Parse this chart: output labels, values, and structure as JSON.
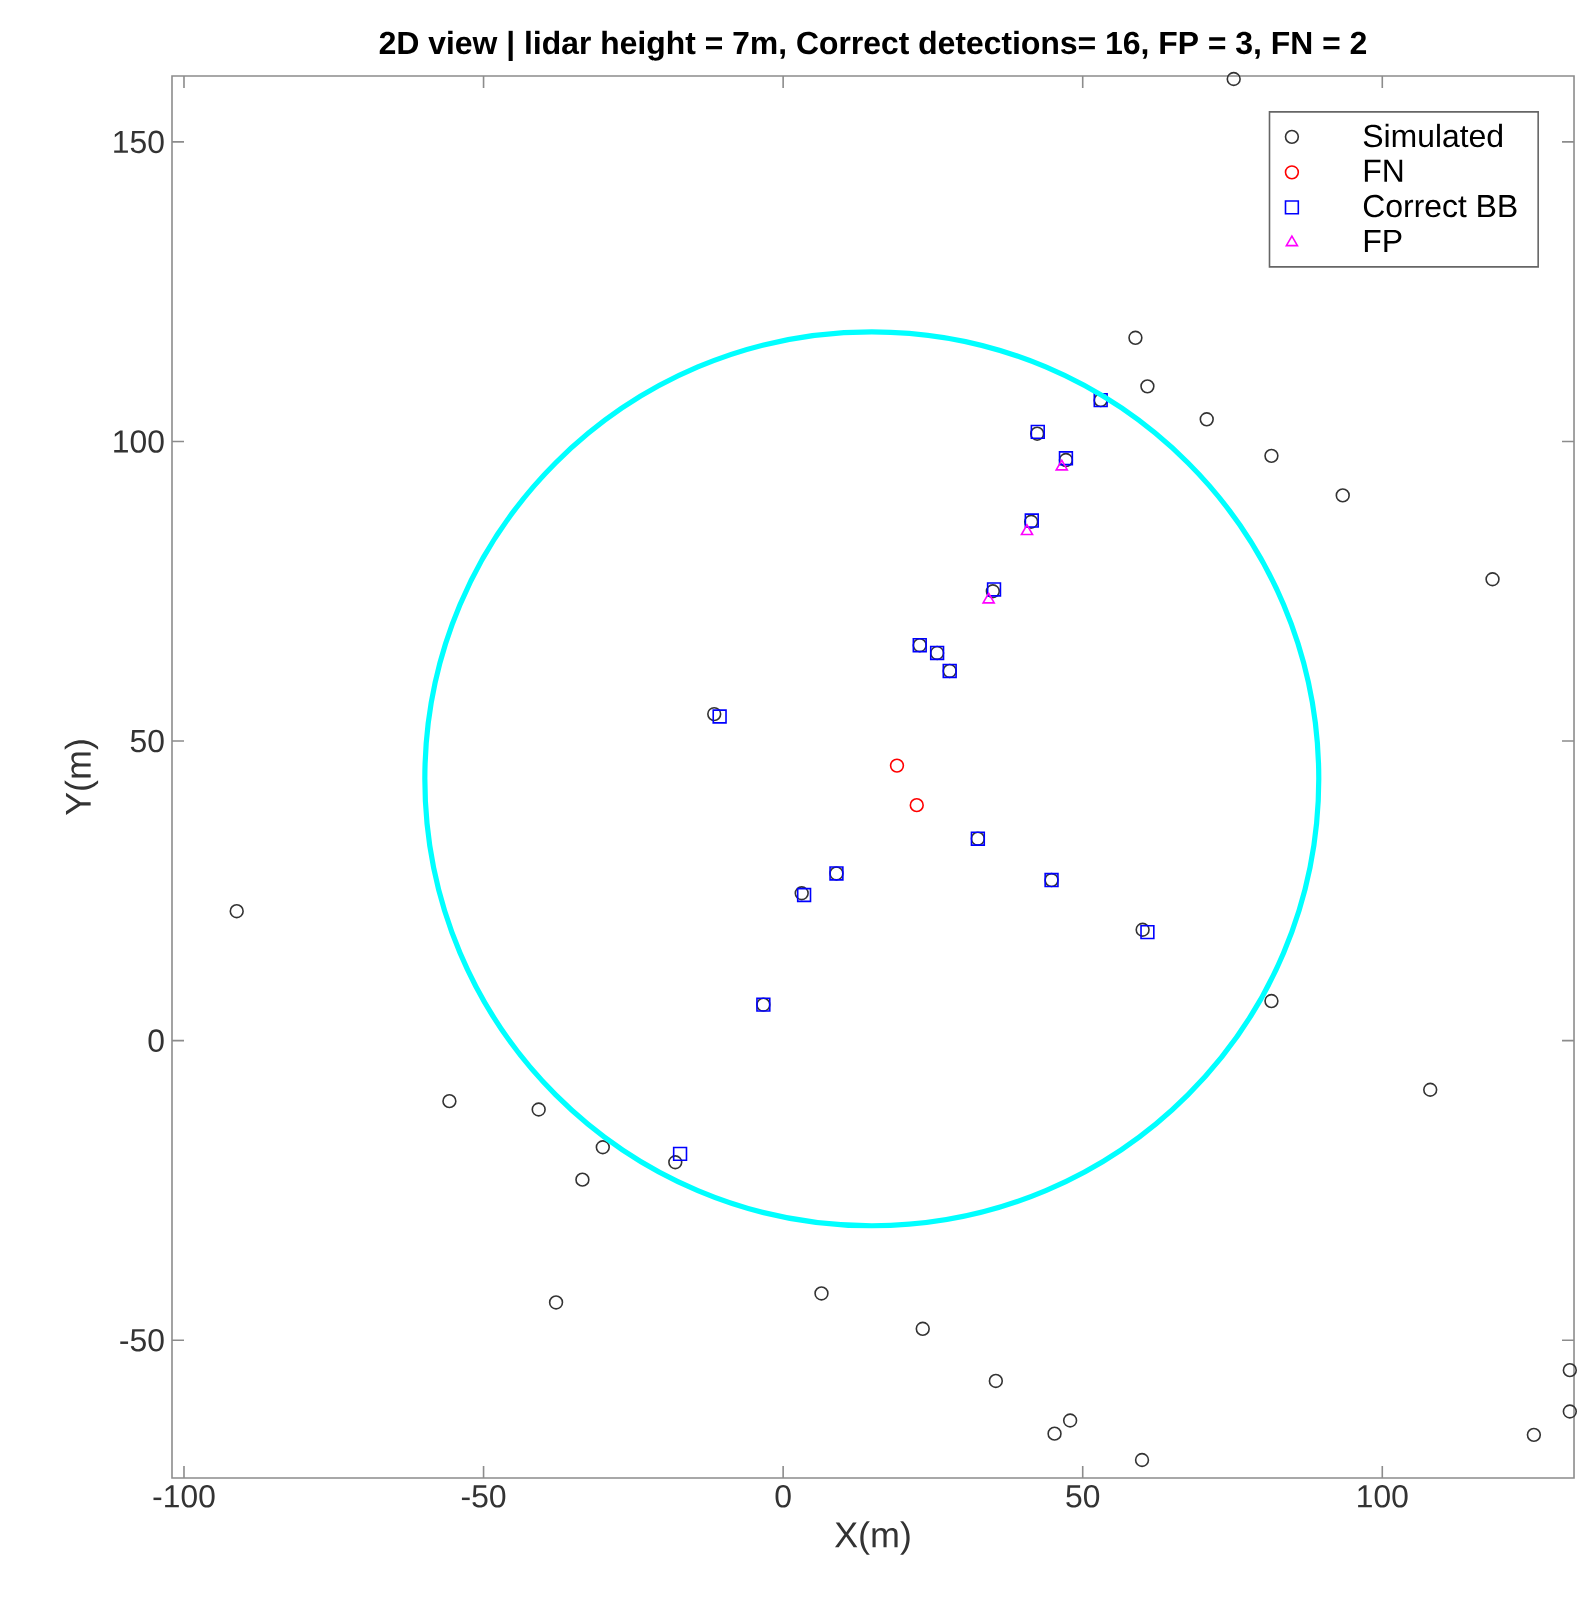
{
  "chart_data": {
    "type": "scatter",
    "title": "2D view | lidar height = 7m, Correct detections= 16, FP = 3, FN = 2",
    "xlabel": "X(m)",
    "ylabel": "Y(m)",
    "xlim": [
      -102,
      132
    ],
    "ylim": [
      -73,
      161
    ],
    "xticks": [
      -100,
      -50,
      0,
      50,
      100
    ],
    "yticks": [
      -50,
      0,
      50,
      100,
      150
    ],
    "legend": "top right",
    "grid": false,
    "series": [
      {
        "name": "Simulated",
        "type": "scatter",
        "marker": "circle",
        "color": "#333333",
        "x": [
          75.2,
          58.8,
          60.8,
          70.7,
          81.5,
          93.4,
          118.4,
          42.4,
          47.2,
          41.4,
          35.0,
          22.8,
          25.7,
          27.8,
          53.0,
          -18.0,
          -3.3,
          3.1,
          8.9,
          32.5,
          44.8,
          60.0,
          -11.5,
          -91.2,
          -55.7,
          -40.8,
          -30.1,
          -33.5,
          -37.9,
          81.5,
          108.0,
          6.4,
          23.3,
          35.5,
          45.3,
          47.9,
          59.9,
          125.3,
          131.3,
          131.3
        ],
        "values": [
          160.5,
          117.3,
          109.2,
          103.7,
          97.6,
          91.0,
          77.0,
          101.3,
          96.9,
          86.6,
          75.0,
          66.0,
          64.7,
          61.7,
          106.9,
          -20.3,
          6.0,
          24.6,
          27.9,
          33.7,
          26.8,
          18.5,
          54.5,
          21.6,
          -10.1,
          -11.5,
          -17.8,
          -23.2,
          -43.7,
          6.6,
          -8.2,
          -42.2,
          -48.1,
          -56.8,
          -65.6,
          -63.4,
          -70.0,
          -65.8,
          -61.9,
          -55.0
        ]
      },
      {
        "name": "FN",
        "type": "scatter",
        "marker": "circle",
        "color": "#ff0000",
        "x": [
          19.0,
          22.3
        ],
        "values": [
          45.9,
          39.3
        ]
      },
      {
        "name": "Correct BB",
        "type": "scatter",
        "marker": "square",
        "color": "#0000ff",
        "x": [
          -17.2,
          -3.3,
          3.5,
          8.9,
          32.5,
          44.8,
          60.8,
          -10.6,
          22.8,
          25.7,
          27.8,
          35.2,
          41.5,
          42.5,
          47.2,
          53.0
        ],
        "values": [
          -18.9,
          6.0,
          24.3,
          27.9,
          33.7,
          26.8,
          18.1,
          54.1,
          66.0,
          64.7,
          61.7,
          75.3,
          86.8,
          101.6,
          97.2,
          106.9
        ]
      },
      {
        "name": "FP",
        "type": "scatter",
        "marker": "triangle",
        "color": "#ff00ff",
        "x": [
          46.5,
          40.7,
          34.3
        ],
        "values": [
          95.8,
          85.0,
          73.6
        ]
      }
    ]
  }
}
